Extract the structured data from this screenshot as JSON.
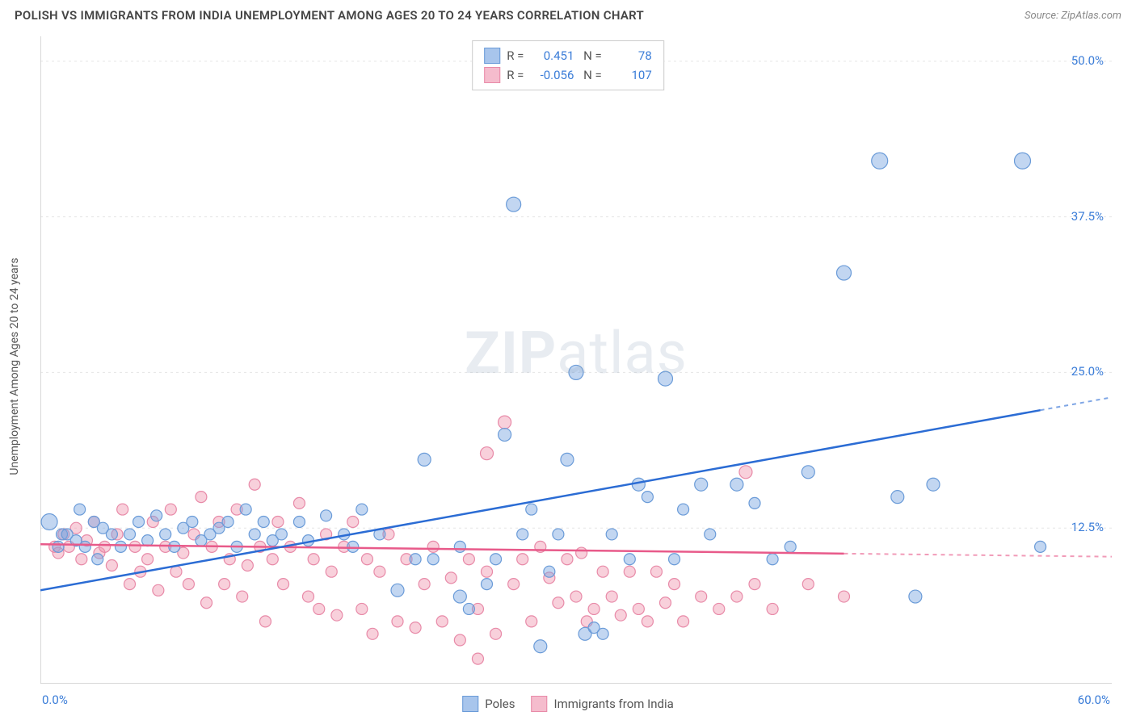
{
  "title": "POLISH VS IMMIGRANTS FROM INDIA UNEMPLOYMENT AMONG AGES 20 TO 24 YEARS CORRELATION CHART",
  "source": "Source: ZipAtlas.com",
  "ylabel": "Unemployment Among Ages 20 to 24 years",
  "watermark": {
    "bold": "ZIP",
    "light": "atlas"
  },
  "xlim": [
    0,
    60
  ],
  "ylim": [
    0,
    52
  ],
  "yticks": [
    {
      "v": 12.5,
      "label": "12.5%"
    },
    {
      "v": 25.0,
      "label": "25.0%"
    },
    {
      "v": 37.5,
      "label": "37.5%"
    },
    {
      "v": 50.0,
      "label": "50.0%"
    }
  ],
  "xtick_positions": [
    0,
    7,
    14,
    21,
    28,
    35,
    42,
    49,
    56
  ],
  "x_axis_labels": {
    "left": "0.0%",
    "right": "60.0%"
  },
  "gridline_color": "#e5e5e5",
  "axis_color": "#cccccc",
  "series": {
    "blue": {
      "name": "Poles",
      "fill": "rgba(120,165,225,0.45)",
      "stroke": "#6a9bd8",
      "swatch_fill": "#a8c5ec",
      "swatch_stroke": "#6a9bd8",
      "R": "0.451",
      "N": "78",
      "trend": {
        "x1": 0,
        "y1": 7.5,
        "x2": 60,
        "y2": 23.0,
        "solid_until": 56
      },
      "trend_color": "#2b6cd4",
      "points": [
        [
          0.5,
          13,
          10
        ],
        [
          1,
          11,
          7
        ],
        [
          1.2,
          12,
          7
        ],
        [
          1.5,
          12,
          7
        ],
        [
          2,
          11.5,
          7
        ],
        [
          2.2,
          14,
          7
        ],
        [
          2.5,
          11,
          7
        ],
        [
          3,
          13,
          7
        ],
        [
          3.2,
          10,
          7
        ],
        [
          3.5,
          12.5,
          7
        ],
        [
          4,
          12,
          7
        ],
        [
          4.5,
          11,
          7
        ],
        [
          5,
          12,
          7
        ],
        [
          5.5,
          13,
          7
        ],
        [
          6,
          11.5,
          7
        ],
        [
          6.5,
          13.5,
          7
        ],
        [
          7,
          12,
          7
        ],
        [
          7.5,
          11,
          7
        ],
        [
          8,
          12.5,
          7
        ],
        [
          8.5,
          13,
          7
        ],
        [
          9,
          11.5,
          7
        ],
        [
          9.5,
          12,
          7
        ],
        [
          10,
          12.5,
          7
        ],
        [
          10.5,
          13,
          7
        ],
        [
          11,
          11,
          7
        ],
        [
          11.5,
          14,
          7
        ],
        [
          12,
          12,
          7
        ],
        [
          12.5,
          13,
          7
        ],
        [
          13,
          11.5,
          7
        ],
        [
          13.5,
          12,
          7
        ],
        [
          14.5,
          13,
          7
        ],
        [
          15,
          11.5,
          7
        ],
        [
          16,
          13.5,
          7
        ],
        [
          17,
          12,
          7
        ],
        [
          17.5,
          11,
          7
        ],
        [
          18,
          14,
          7
        ],
        [
          19,
          12,
          7
        ],
        [
          20,
          7.5,
          8
        ],
        [
          21,
          10,
          7
        ],
        [
          21.5,
          18,
          8
        ],
        [
          22,
          10,
          7
        ],
        [
          23.5,
          11,
          7
        ],
        [
          23.5,
          7,
          8
        ],
        [
          24,
          6,
          7
        ],
        [
          25,
          8,
          7
        ],
        [
          25.5,
          10,
          7
        ],
        [
          26,
          20,
          8
        ],
        [
          26.5,
          38.5,
          9
        ],
        [
          27,
          12,
          7
        ],
        [
          27.5,
          14,
          7
        ],
        [
          28,
          3,
          8
        ],
        [
          28.5,
          9,
          7
        ],
        [
          29,
          12,
          7
        ],
        [
          29.5,
          18,
          8
        ],
        [
          30,
          25,
          9
        ],
        [
          30.5,
          4,
          8
        ],
        [
          31,
          4.5,
          7
        ],
        [
          31.5,
          4,
          7
        ],
        [
          32,
          12,
          7
        ],
        [
          33,
          10,
          7
        ],
        [
          33.5,
          16,
          8
        ],
        [
          34,
          15,
          7
        ],
        [
          35,
          24.5,
          9
        ],
        [
          35.5,
          10,
          7
        ],
        [
          36,
          14,
          7
        ],
        [
          37,
          16,
          8
        ],
        [
          37.5,
          12,
          7
        ],
        [
          39,
          16,
          8
        ],
        [
          40,
          14.5,
          7
        ],
        [
          41,
          10,
          7
        ],
        [
          42,
          11,
          7
        ],
        [
          43,
          17,
          8
        ],
        [
          45,
          33,
          9
        ],
        [
          47,
          42,
          10
        ],
        [
          48,
          15,
          8
        ],
        [
          49,
          7,
          8
        ],
        [
          50,
          16,
          8
        ],
        [
          55,
          42,
          10
        ],
        [
          56,
          11,
          7
        ]
      ]
    },
    "pink": {
      "name": "Immigrants from India",
      "fill": "rgba(240,150,175,0.45)",
      "stroke": "#e88aa8",
      "swatch_fill": "#f5bccd",
      "swatch_stroke": "#e88aa8",
      "R": "-0.056",
      "N": "107",
      "trend": {
        "x1": 0,
        "y1": 11.2,
        "x2": 60,
        "y2": 10.2,
        "solid_until": 45
      },
      "trend_color": "#e85a8a",
      "points": [
        [
          0.8,
          11,
          7
        ],
        [
          1,
          10.5,
          7
        ],
        [
          1.3,
          12,
          7
        ],
        [
          1.6,
          11,
          7
        ],
        [
          2,
          12.5,
          7
        ],
        [
          2.3,
          10,
          7
        ],
        [
          2.6,
          11.5,
          7
        ],
        [
          3,
          13,
          7
        ],
        [
          3.3,
          10.5,
          7
        ],
        [
          3.6,
          11,
          7
        ],
        [
          4,
          9.5,
          7
        ],
        [
          4.3,
          12,
          7
        ],
        [
          4.6,
          14,
          7
        ],
        [
          5,
          8,
          7
        ],
        [
          5.3,
          11,
          7
        ],
        [
          5.6,
          9,
          7
        ],
        [
          6,
          10,
          7
        ],
        [
          6.3,
          13,
          7
        ],
        [
          6.6,
          7.5,
          7
        ],
        [
          7,
          11,
          7
        ],
        [
          7.3,
          14,
          7
        ],
        [
          7.6,
          9,
          7
        ],
        [
          8,
          10.5,
          7
        ],
        [
          8.3,
          8,
          7
        ],
        [
          8.6,
          12,
          7
        ],
        [
          9,
          15,
          7
        ],
        [
          9.3,
          6.5,
          7
        ],
        [
          9.6,
          11,
          7
        ],
        [
          10,
          13,
          7
        ],
        [
          10.3,
          8,
          7
        ],
        [
          10.6,
          10,
          7
        ],
        [
          11,
          14,
          7
        ],
        [
          11.3,
          7,
          7
        ],
        [
          11.6,
          9.5,
          7
        ],
        [
          12,
          16,
          7
        ],
        [
          12.3,
          11,
          7
        ],
        [
          12.6,
          5,
          7
        ],
        [
          13,
          10,
          7
        ],
        [
          13.3,
          13,
          7
        ],
        [
          13.6,
          8,
          7
        ],
        [
          14,
          11,
          7
        ],
        [
          14.5,
          14.5,
          7
        ],
        [
          15,
          7,
          7
        ],
        [
          15.3,
          10,
          7
        ],
        [
          15.6,
          6,
          7
        ],
        [
          16,
          12,
          7
        ],
        [
          16.3,
          9,
          7
        ],
        [
          16.6,
          5.5,
          7
        ],
        [
          17,
          11,
          7
        ],
        [
          17.5,
          13,
          7
        ],
        [
          18,
          6,
          7
        ],
        [
          18.3,
          10,
          7
        ],
        [
          18.6,
          4,
          7
        ],
        [
          19,
          9,
          7
        ],
        [
          19.5,
          12,
          7
        ],
        [
          20,
          5,
          7
        ],
        [
          20.5,
          10,
          7
        ],
        [
          21,
          4.5,
          7
        ],
        [
          21.5,
          8,
          7
        ],
        [
          22,
          11,
          7
        ],
        [
          22.5,
          5,
          7
        ],
        [
          23,
          8.5,
          7
        ],
        [
          23.5,
          3.5,
          7
        ],
        [
          24,
          10,
          7
        ],
        [
          24.5,
          6,
          7
        ],
        [
          24.5,
          2,
          7
        ],
        [
          25,
          9,
          7
        ],
        [
          25,
          18.5,
          8
        ],
        [
          25.5,
          4,
          7
        ],
        [
          26,
          21,
          8
        ],
        [
          26.5,
          8,
          7
        ],
        [
          27,
          10,
          7
        ],
        [
          27.5,
          5,
          7
        ],
        [
          28,
          11,
          7
        ],
        [
          28.5,
          8.5,
          7
        ],
        [
          29,
          6.5,
          7
        ],
        [
          29.5,
          10,
          7
        ],
        [
          30,
          7,
          7
        ],
        [
          30.3,
          10.5,
          7
        ],
        [
          30.6,
          5,
          7
        ],
        [
          31,
          6,
          7
        ],
        [
          31.5,
          9,
          7
        ],
        [
          32,
          7,
          7
        ],
        [
          32.5,
          5.5,
          7
        ],
        [
          33,
          9,
          7
        ],
        [
          33.5,
          6,
          7
        ],
        [
          34,
          5,
          7
        ],
        [
          34.5,
          9,
          7
        ],
        [
          35,
          6.5,
          7
        ],
        [
          35.5,
          8,
          7
        ],
        [
          36,
          5,
          7
        ],
        [
          37,
          7,
          7
        ],
        [
          38,
          6,
          7
        ],
        [
          39,
          7,
          7
        ],
        [
          39.5,
          17,
          8
        ],
        [
          40,
          8,
          7
        ],
        [
          41,
          6,
          7
        ],
        [
          43,
          8,
          7
        ],
        [
          45,
          7,
          7
        ]
      ]
    }
  }
}
